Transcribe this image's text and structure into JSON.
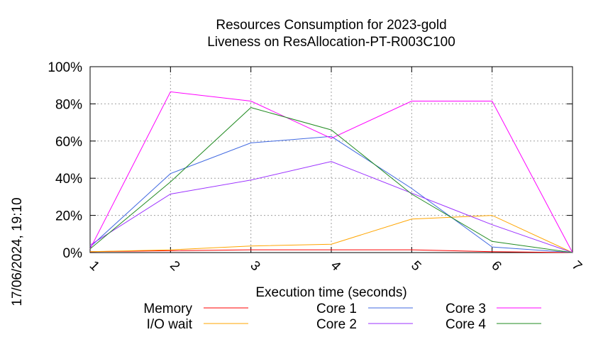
{
  "chart_data": {
    "type": "line",
    "title": [
      "Resources Consumption for 2023-gold",
      "Liveness on ResAllocation-PT-R003C100"
    ],
    "xlabel": "Execution time (seconds)",
    "ylabel": "",
    "side_label": "17/06/2024, 19:10",
    "x": [
      1,
      2,
      3,
      4,
      5,
      6,
      7
    ],
    "xticks": [
      "1",
      "2",
      "3",
      "4",
      "5",
      "6",
      "7"
    ],
    "ylim": [
      0,
      100
    ],
    "yticks": [
      "0%",
      "20%",
      "40%",
      "60%",
      "80%",
      "100%"
    ],
    "grid": true,
    "legend_position": "bottom",
    "series": [
      {
        "name": "Memory",
        "color": "#ff0000",
        "values": [
          0.5,
          1,
          1.5,
          1.5,
          1.5,
          0.5,
          0
        ]
      },
      {
        "name": "I/O wait",
        "color": "#ffa500",
        "values": [
          0.5,
          1.5,
          3.5,
          4.5,
          18,
          20,
          0
        ]
      },
      {
        "name": "Core 1",
        "color": "#4169e1",
        "values": [
          3,
          42.5,
          59,
          62.5,
          34.5,
          3,
          0
        ]
      },
      {
        "name": "Core 2",
        "color": "#9b30ff",
        "values": [
          4,
          31.5,
          39,
          49,
          32,
          15,
          0
        ]
      },
      {
        "name": "Core 3",
        "color": "#ff00ff",
        "values": [
          2,
          86.5,
          81.5,
          61.5,
          81.5,
          81.5,
          0
        ]
      },
      {
        "name": "Core 4",
        "color": "#228b22",
        "values": [
          2,
          38,
          78,
          66,
          31.5,
          6,
          0
        ]
      }
    ]
  }
}
